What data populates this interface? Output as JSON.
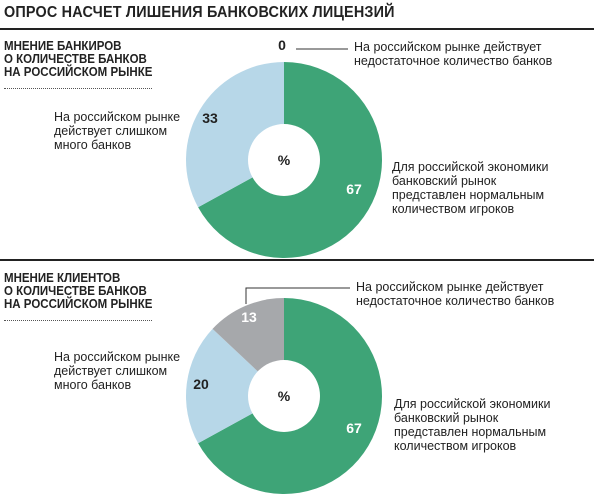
{
  "title": "ОПРОС НАСЧЕТ ЛИШЕНИЯ БАНКОВСКИХ ЛИЦЕНЗИЙ",
  "chart_data": [
    {
      "type": "pie",
      "title": "МНЕНИЕ БАНКИРОВ\nО КОЛИЧЕСТВЕ БАНКОВ\nНА РОССИЙСКОМ РЫНКЕ",
      "unit": "%",
      "slices": [
        {
          "label": "На российском рынке действует\nнедостаточное количество банков",
          "value": 0,
          "color": "#a6a8ab"
        },
        {
          "label": "Для российской экономики\nбанковский рынок\nпредставлен нормальным\nколичеством игроков",
          "value": 67,
          "color": "#3ea477"
        },
        {
          "label": "На российском рынке\nдействует слишком\nмного банков",
          "value": 33,
          "color": "#b7d7e8"
        }
      ]
    },
    {
      "type": "pie",
      "title": "МНЕНИЕ КЛИЕНТОВ\nО КОЛИЧЕСТВЕ БАНКОВ\nНА РОССИЙСКОМ РЫНКЕ",
      "unit": "%",
      "slices": [
        {
          "label": "На российском рынке действует\nнедостаточное количество банков",
          "value": 13,
          "color": "#a6a8ab"
        },
        {
          "label": "Для российской экономики\nбанковский рынок\nпредставлен нормальным\nколичеством игроков",
          "value": 67,
          "color": "#3ea477"
        },
        {
          "label": "На российском рынке\nдействует слишком\nмного банков",
          "value": 20,
          "color": "#b7d7e8"
        }
      ]
    }
  ]
}
